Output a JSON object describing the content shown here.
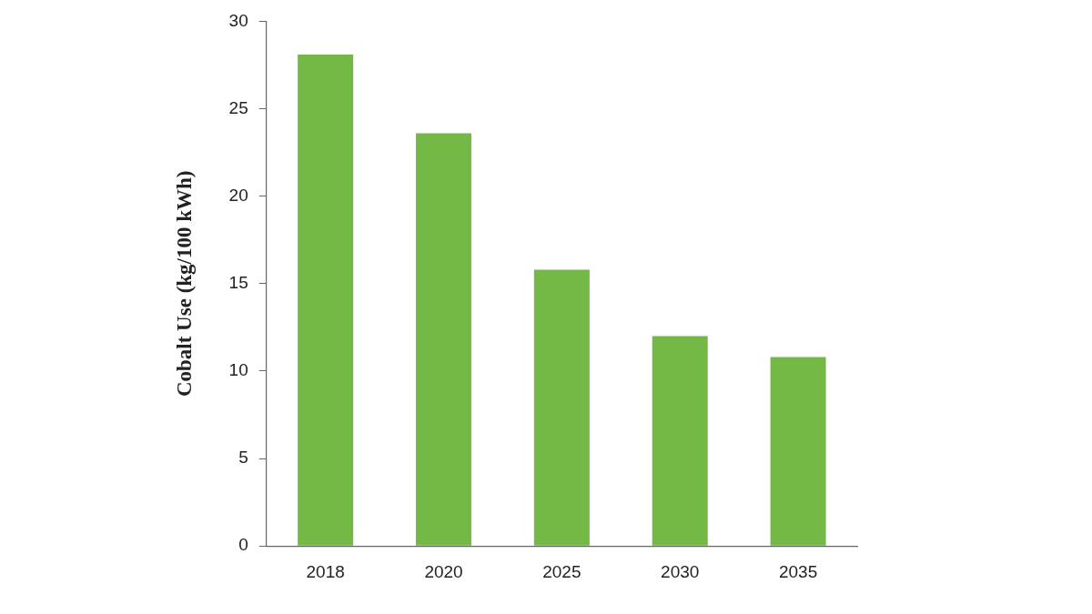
{
  "chart_data": {
    "type": "bar",
    "y_label": "Cobalt Use (kg/100 kWh)",
    "categories": [
      "2018",
      "2020",
      "2025",
      "2030",
      "2035"
    ],
    "values": [
      28.1,
      23.6,
      15.8,
      12.0,
      10.8
    ],
    "color": "#74b946",
    "ylim": [
      0,
      30
    ],
    "yticks": [
      0,
      5,
      10,
      15,
      20,
      25,
      30
    ],
    "grid": false
  }
}
